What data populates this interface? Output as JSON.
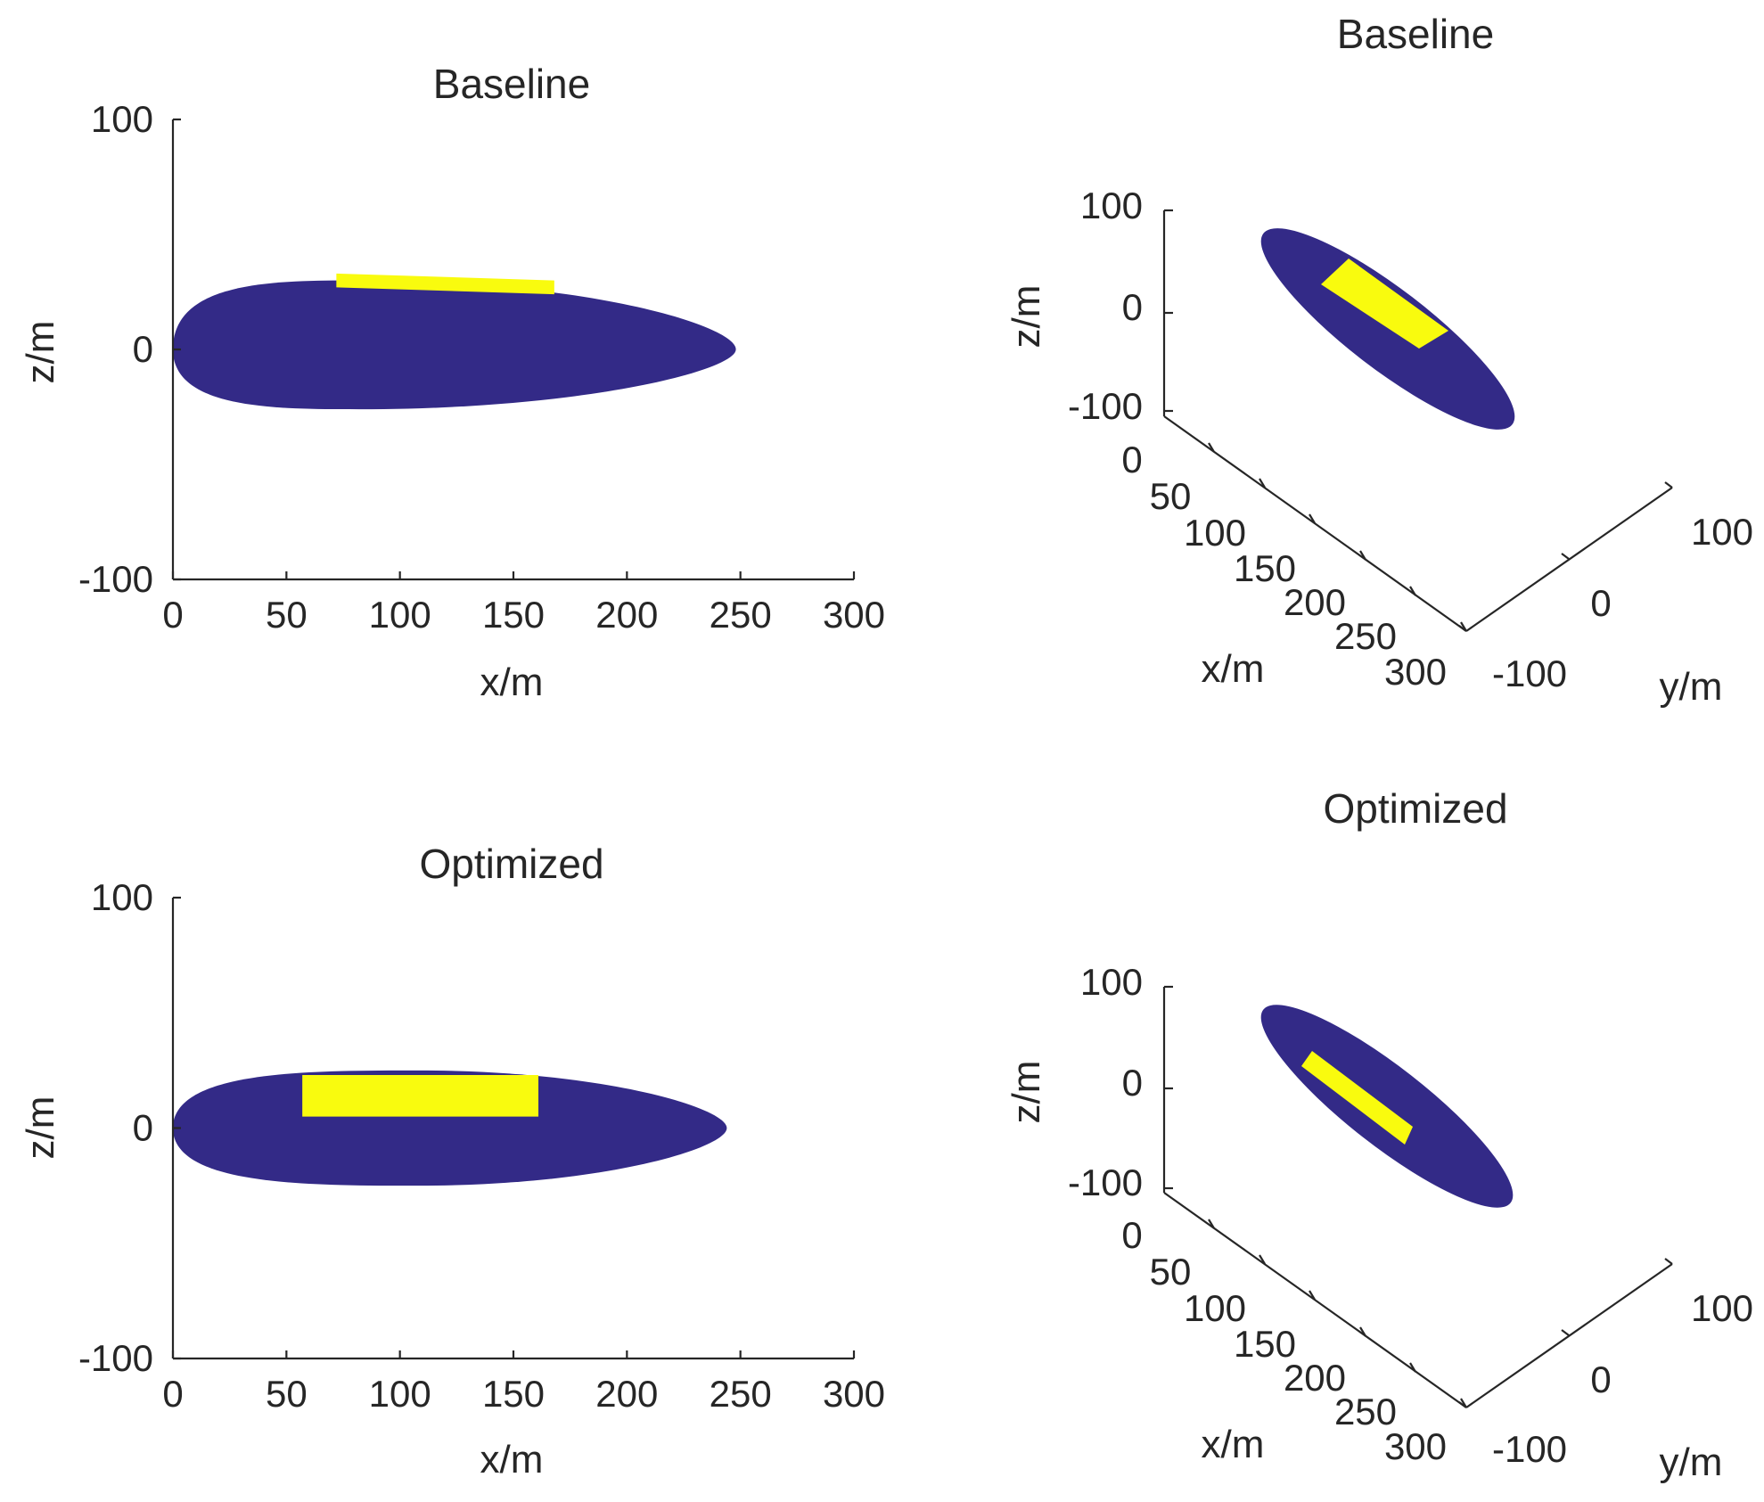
{
  "figure": {
    "body_color": "#332a87",
    "patch_color": "#f9fb0e",
    "axis_color": "#262626",
    "background": "#ffffff"
  },
  "chart_data": [
    {
      "id": "baseline-side",
      "type": "shape-xz",
      "title": "Baseline",
      "xlabel": "x/m",
      "ylabel": "z/m",
      "xlim": [
        0,
        300
      ],
      "ylim": [
        -100,
        100
      ],
      "xticks": [
        0,
        50,
        100,
        150,
        200,
        250,
        300
      ],
      "yticks": [
        -100,
        0,
        100
      ],
      "xtick_labels": [
        "0",
        "50",
        "100",
        "150",
        "200",
        "250",
        "300"
      ],
      "ytick_labels": [
        "-100",
        "0",
        "100"
      ],
      "body": {
        "x_start": 0,
        "x_end": 248,
        "z_top": 30,
        "z_bottom": -26,
        "x_max_thickness": 82
      },
      "patch": {
        "x_start": 72,
        "x_end": 168,
        "z_top": 33,
        "z_bottom": 27,
        "z_bottom_end": 24
      }
    },
    {
      "id": "baseline-3d",
      "type": "shape-3d",
      "title": "Baseline",
      "xlabel": "x/m",
      "ylabel": "y/m",
      "zlabel": "z/m",
      "xticks": [
        0,
        50,
        100,
        150,
        200,
        250,
        300
      ],
      "yticks": [
        -100,
        0,
        100
      ],
      "zticks": [
        -100,
        0,
        100
      ],
      "xtick_labels": [
        "0",
        "50",
        "100",
        "150",
        "200",
        "250",
        "300"
      ],
      "ytick_labels": [
        "-100",
        "0",
        "100"
      ],
      "ztick_labels": [
        "-100",
        "0",
        "100"
      ]
    },
    {
      "id": "optimized-side",
      "type": "shape-xz",
      "title": "Optimized",
      "xlabel": "x/m",
      "ylabel": "z/m",
      "xlim": [
        0,
        300
      ],
      "ylim": [
        -100,
        100
      ],
      "xticks": [
        0,
        50,
        100,
        150,
        200,
        250,
        300
      ],
      "yticks": [
        -100,
        0,
        100
      ],
      "xtick_labels": [
        "0",
        "50",
        "100",
        "150",
        "200",
        "250",
        "300"
      ],
      "ytick_labels": [
        "-100",
        "0",
        "100"
      ],
      "body": {
        "x_start": 0,
        "x_end": 244,
        "z_top": 25,
        "z_bottom": -25,
        "x_max_thickness": 108
      },
      "patch": {
        "x_start": 57,
        "x_end": 161,
        "z_top": 23,
        "z_bottom": 5,
        "z_bottom_end": 5
      }
    },
    {
      "id": "optimized-3d",
      "type": "shape-3d",
      "title": "Optimized",
      "xlabel": "x/m",
      "ylabel": "y/m",
      "zlabel": "z/m",
      "xticks": [
        0,
        50,
        100,
        150,
        200,
        250,
        300
      ],
      "yticks": [
        -100,
        0,
        100
      ],
      "zticks": [
        -100,
        0,
        100
      ],
      "xtick_labels": [
        "0",
        "50",
        "100",
        "150",
        "200",
        "250",
        "300"
      ],
      "ytick_labels": [
        "-100",
        "0",
        "100"
      ],
      "ztick_labels": [
        "-100",
        "0",
        "100"
      ]
    }
  ]
}
